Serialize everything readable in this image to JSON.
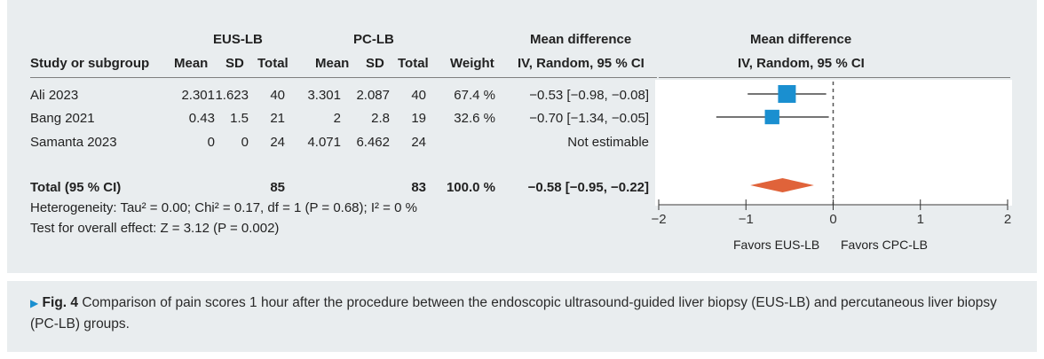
{
  "headers": {
    "group1": "EUS-LB",
    "group2": "PC-LB",
    "md_left_1": "Mean difference",
    "md_left_2": "IV, Random, 95 % CI",
    "md_right_1": "Mean difference",
    "md_right_2": "IV, Random, 95 % CI",
    "study": "Study or subgroup",
    "mean": "Mean",
    "sd": "SD",
    "total": "Total",
    "weight": "Weight"
  },
  "rows": [
    {
      "study": "Ali 2023",
      "m1": "2.301",
      "sd1": "1.623",
      "n1": "40",
      "m2": "3.301",
      "sd2": "2.087",
      "n2": "40",
      "weight": "67.4 %",
      "ci": "−0.53 [−0.98, −0.08]"
    },
    {
      "study": "Bang 2021",
      "m1": "0.43",
      "sd1": "1.5",
      "n1": "21",
      "m2": "2",
      "sd2": "2.8",
      "n2": "19",
      "weight": "32.6 %",
      "ci": "−0.70 [−1.34, −0.05]"
    },
    {
      "study": "Samanta 2023",
      "m1": "0",
      "sd1": "0",
      "n1": "24",
      "m2": "4.071",
      "sd2": "6.462",
      "n2": "24",
      "weight": "",
      "ci": "Not estimable"
    }
  ],
  "total": {
    "label": "Total (95 % CI)",
    "n1": "85",
    "n2": "83",
    "weight": "100.0 %",
    "ci": "−0.58 [−0.95, −0.22]"
  },
  "heterogeneity": "Heterogeneity: Tau² = 0.00; Chi² = 0.17, df = 1 (P = 0.68); I² = 0 %",
  "overall": "Test for overall effect: Z = 3.12 (P = 0.002)",
  "favors_left": "Favors EUS-LB",
  "favors_right": "Favors CPC-LB",
  "caption": {
    "fig": "Fig. 4",
    "text": "Comparison of pain scores 1 hour after the procedure between the endoscopic ultrasound-guided liver biopsy (EUS-LB) and percutaneous liver biopsy (PC-LB) groups."
  },
  "colors": {
    "square": "#1a8fd0",
    "diamond": "#e0633a"
  },
  "chart_data": {
    "type": "forest",
    "xlim": [
      -2,
      2
    ],
    "ticks": [
      "−2",
      "−1",
      "0",
      "1",
      "2"
    ],
    "tick_values": [
      -2,
      -1,
      0,
      1,
      2
    ],
    "studies": [
      {
        "name": "Ali 2023",
        "estimate": -0.53,
        "lower": -0.98,
        "upper": -0.08,
        "weight": 67.4
      },
      {
        "name": "Bang 2021",
        "estimate": -0.7,
        "lower": -1.34,
        "upper": -0.05,
        "weight": 32.6
      }
    ],
    "pooled": {
      "estimate": -0.58,
      "lower": -0.95,
      "upper": -0.22
    }
  }
}
